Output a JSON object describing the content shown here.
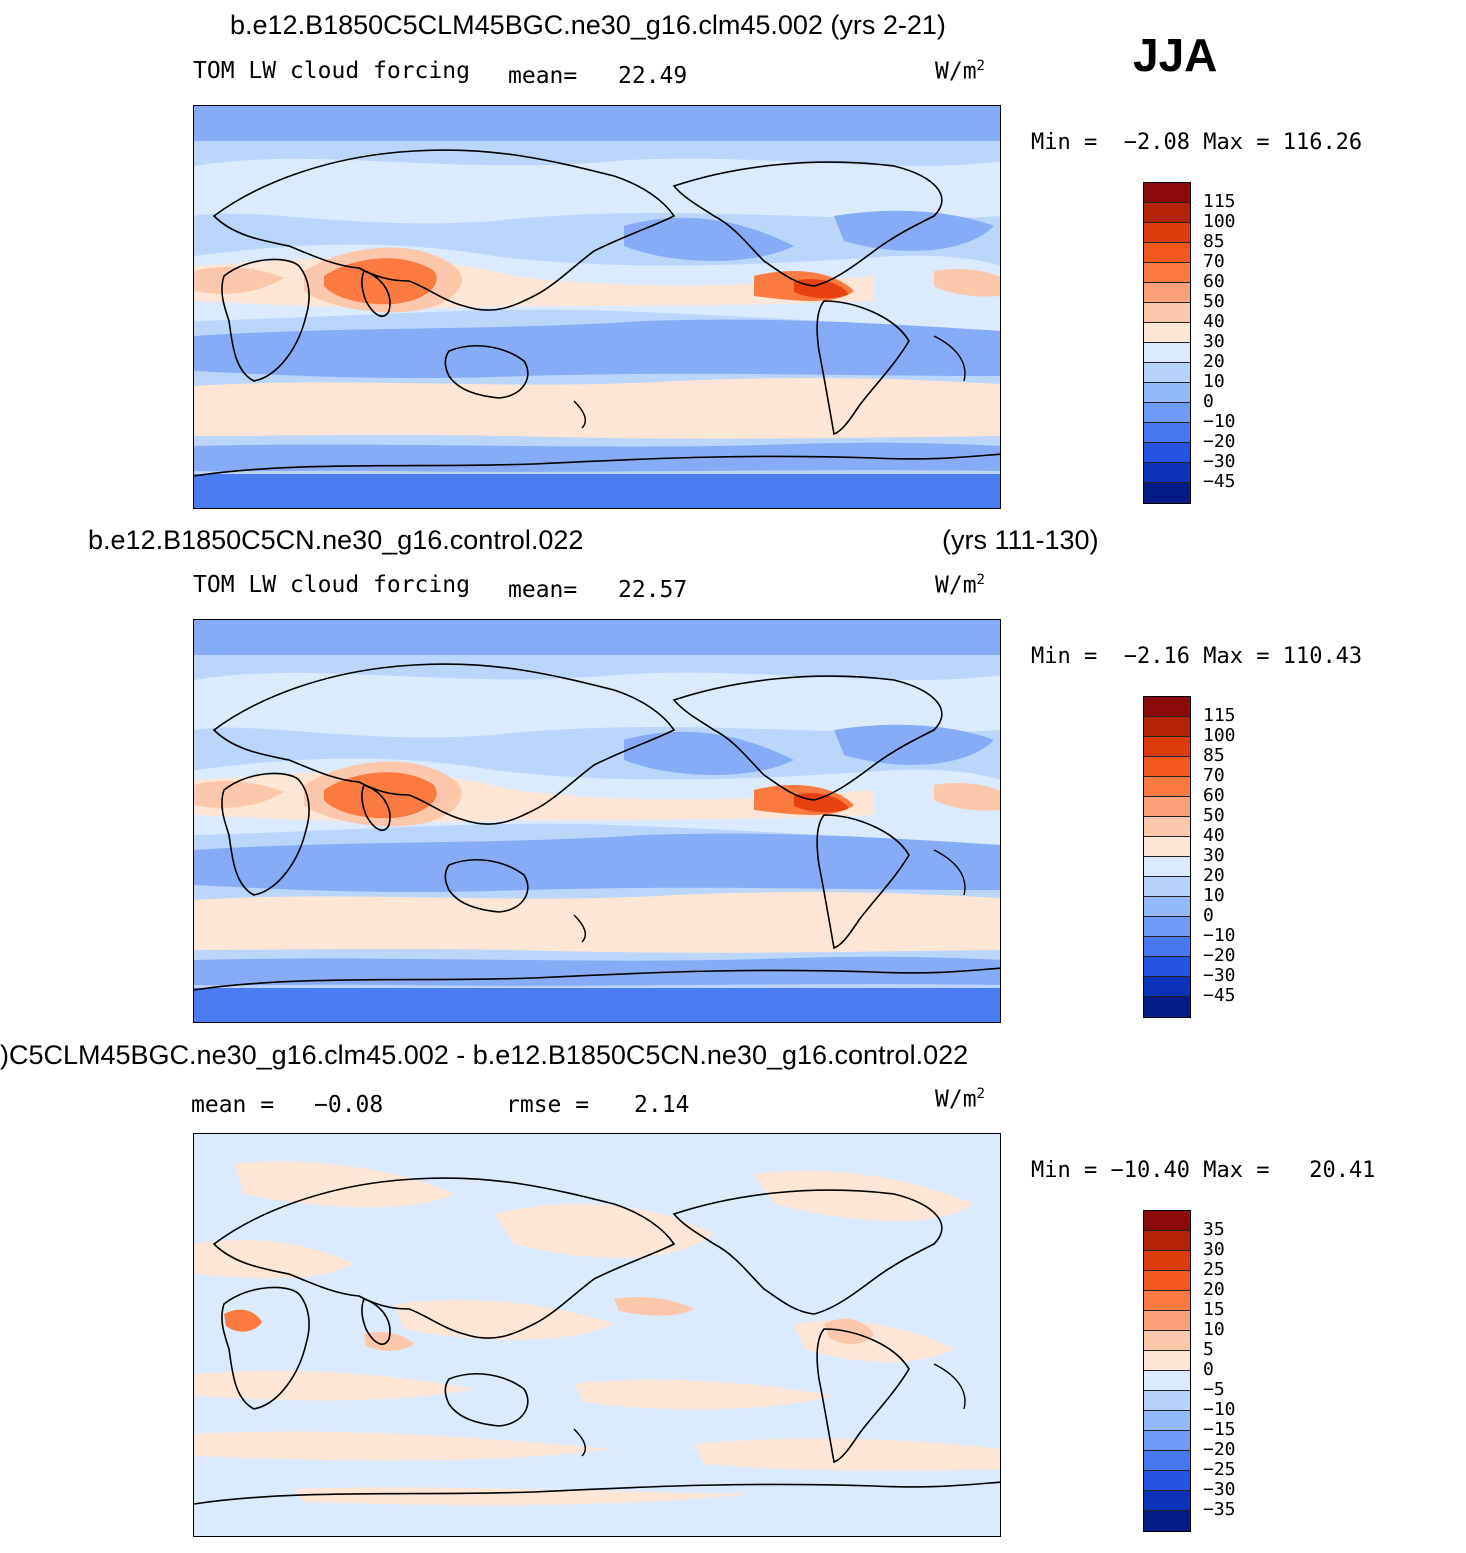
{
  "season": "JJA",
  "units_base": "W/m",
  "units_sup": "2",
  "panels": [
    {
      "title_left": "b.e12.B1850C5CLM45BGC.ne30_g16.clm45.002 (yrs 2-21)",
      "title_right": "",
      "field": "TOM LW cloud forcing",
      "stat1_label": "mean=",
      "stat1_value": "22.49",
      "stat2_label": "",
      "stat2_value": "",
      "min_label": "Min =",
      "min_value": "−2.08",
      "max_label": "Max =",
      "max_value": "116.26",
      "colorbar_labels": [
        "115",
        "100",
        "85",
        "70",
        "60",
        "50",
        "40",
        "30",
        "20",
        "10",
        "0",
        "−10",
        "−20",
        "−30",
        "−45"
      ],
      "colorbar_colors": [
        "#8b0a0a",
        "#b32407",
        "#db3c0a",
        "#f2571b",
        "#fb7a40",
        "#fca07a",
        "#fdc7ab",
        "#fde6d6",
        "#dbeafd",
        "#b6d2fc",
        "#93b8fb",
        "#6d9bf7",
        "#4678f0",
        "#2554e0",
        "#0b33b8",
        "#041c88"
      ]
    },
    {
      "title_left": "b.e12.B1850C5CN.ne30_g16.control.022",
      "title_right": "(yrs 111-130)",
      "field": "TOM LW cloud forcing",
      "stat1_label": "mean=",
      "stat1_value": "22.57",
      "stat2_label": "",
      "stat2_value": "",
      "min_label": "Min =",
      "min_value": "−2.16",
      "max_label": "Max =",
      "max_value": "110.43",
      "colorbar_labels": [
        "115",
        "100",
        "85",
        "70",
        "60",
        "50",
        "40",
        "30",
        "20",
        "10",
        "0",
        "−10",
        "−20",
        "−30",
        "−45"
      ],
      "colorbar_colors": [
        "#8b0a0a",
        "#b32407",
        "#db3c0a",
        "#f2571b",
        "#fb7a40",
        "#fca07a",
        "#fdc7ab",
        "#fde6d6",
        "#dbeafd",
        "#b6d2fc",
        "#93b8fb",
        "#6d9bf7",
        "#4678f0",
        "#2554e0",
        "#0b33b8",
        "#041c88"
      ]
    },
    {
      "title_left": ")C5CLM45BGC.ne30_g16.clm45.002 - b.e12.B1850C5CN.ne30_g16.control.022",
      "title_right": "",
      "field": "",
      "stat1_label": "mean =",
      "stat1_value": "−0.08",
      "stat2_label": "rmse =",
      "stat2_value": "2.14",
      "min_label": "Min =",
      "min_value": "−10.40",
      "max_label": "Max =",
      "max_value": "20.41",
      "colorbar_labels": [
        "35",
        "30",
        "25",
        "20",
        "15",
        "10",
        "5",
        "0",
        "−5",
        "−10",
        "−15",
        "−20",
        "−25",
        "−30",
        "−35"
      ],
      "colorbar_colors": [
        "#8b0a0a",
        "#b32407",
        "#db3c0a",
        "#f2571b",
        "#fb7a40",
        "#fca07a",
        "#fdc7ab",
        "#fde6d6",
        "#dbeafd",
        "#b6d2fc",
        "#93b8fb",
        "#6d9bf7",
        "#4678f0",
        "#2554e0",
        "#0b33b8",
        "#041c88"
      ]
    }
  ],
  "map_colors": {
    "base": "#bcd5fb",
    "light": "#dbeafd",
    "pale_red": "#fde6d6",
    "salmon": "#fdc7ab",
    "orange": "#fb7a40",
    "red": "#e8400f",
    "blue": "#86acf8",
    "deep_blue": "#4a7cf2"
  }
}
